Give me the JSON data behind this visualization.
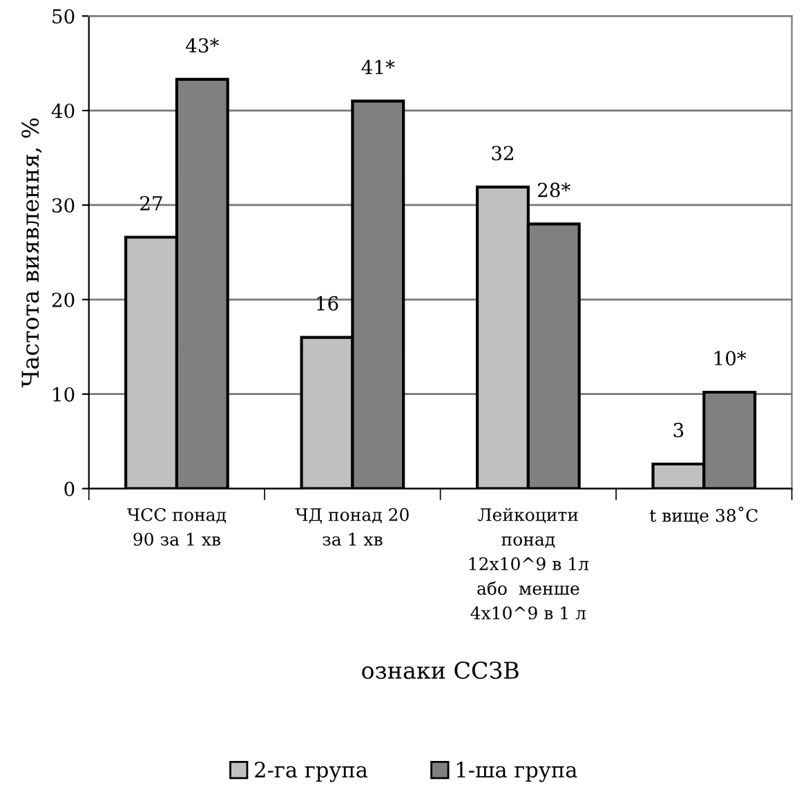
{
  "chart_data": {
    "type": "bar",
    "xlabel": "ознаки ССЗВ",
    "ylabel": "Частота виявлення, %",
    "categories": [
      "ЧСС понад\n90 за 1 хв",
      "ЧД понад 20\nза 1 хв",
      "Лейкоцити\nпонад\n12x10^9 в 1л\nабо  менше\n4x10^9 в 1 л",
      "t вище 38˚С"
    ],
    "series": [
      {
        "name": "2-га група",
        "color": "#c0c0c0",
        "values": [
          26.6,
          16.0,
          31.9,
          2.6
        ],
        "value_labels": [
          "27",
          "16",
          "32",
          "3"
        ]
      },
      {
        "name": "1-ша група",
        "color": "#808080",
        "values": [
          43.3,
          41.0,
          28.0,
          10.2
        ],
        "value_labels": [
          "43*",
          "41*",
          "28*",
          "10*"
        ]
      }
    ],
    "ylim": [
      0,
      50
    ],
    "yticks": [
      0,
      10,
      20,
      30,
      40,
      50
    ],
    "grid": "y",
    "legend": "bottom"
  }
}
